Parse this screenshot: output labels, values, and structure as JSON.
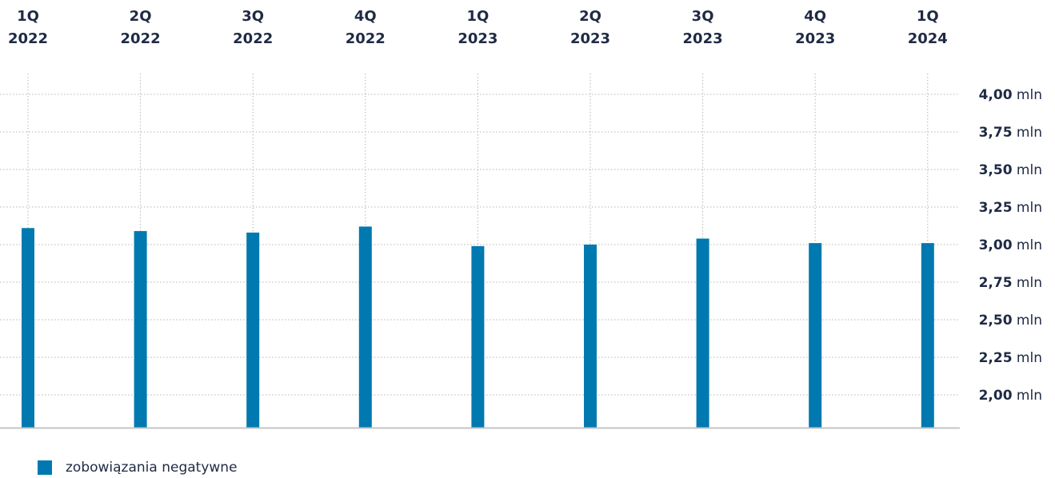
{
  "chart_data": {
    "type": "bar",
    "categories": [
      [
        "1Q",
        "2022"
      ],
      [
        "2Q",
        "2022"
      ],
      [
        "3Q",
        "2022"
      ],
      [
        "4Q",
        "2022"
      ],
      [
        "1Q",
        "2023"
      ],
      [
        "2Q",
        "2023"
      ],
      [
        "3Q",
        "2023"
      ],
      [
        "4Q",
        "2023"
      ],
      [
        "1Q",
        "2024"
      ]
    ],
    "series": [
      {
        "name": "zobowiązania negatywne",
        "color": "#0079b0",
        "values": [
          3.11,
          3.09,
          3.08,
          3.12,
          2.99,
          3.0,
          3.04,
          3.01,
          3.01
        ]
      }
    ],
    "y_ticks": [
      {
        "value": 4.0,
        "num": "4,00",
        "unit": "mln"
      },
      {
        "value": 3.75,
        "num": "3,75",
        "unit": "mln"
      },
      {
        "value": 3.5,
        "num": "3,50",
        "unit": "mln"
      },
      {
        "value": 3.25,
        "num": "3,25",
        "unit": "mln"
      },
      {
        "value": 3.0,
        "num": "3,00",
        "unit": "mln"
      },
      {
        "value": 2.75,
        "num": "2,75",
        "unit": "mln"
      },
      {
        "value": 2.5,
        "num": "2,50",
        "unit": "mln"
      },
      {
        "value": 2.25,
        "num": "2,25",
        "unit": "mln"
      },
      {
        "value": 2.0,
        "num": "2,00",
        "unit": "mln"
      }
    ],
    "ylim": [
      1.78,
      4.0
    ],
    "x_axis_position": "top",
    "y_axis_position": "right",
    "grid": true,
    "legend_position": "bottom-left"
  }
}
